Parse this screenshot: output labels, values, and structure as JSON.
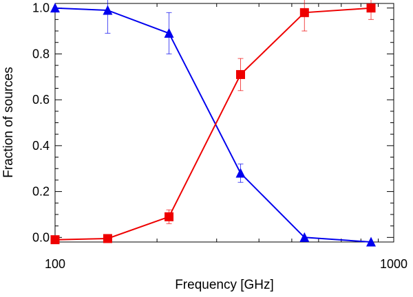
{
  "chart_data": {
    "type": "line",
    "title": "",
    "xlabel": "Frequency [GHz]",
    "ylabel": "Fraction of sources",
    "xscale": "log",
    "xlim": [
      100,
      1000
    ],
    "ylim": [
      -0.02,
      1.02
    ],
    "x_ticks": [
      {
        "value": 100,
        "label": "100"
      },
      {
        "value": 1000,
        "label": "1000"
      }
    ],
    "y_ticks": [
      {
        "value": 0.0,
        "label": "0.0"
      },
      {
        "value": 0.2,
        "label": "0.2"
      },
      {
        "value": 0.4,
        "label": "0.4"
      },
      {
        "value": 0.6,
        "label": "0.6"
      },
      {
        "value": 0.8,
        "label": "0.8"
      },
      {
        "value": 1.0,
        "label": "1.0"
      }
    ],
    "grid": false,
    "legend": "none",
    "series": [
      {
        "color": "#0000ee",
        "marker": "triangle",
        "points": [
          {
            "x": 100,
            "y": 1.0,
            "err": 0.0
          },
          {
            "x": 143,
            "y": 0.99,
            "err": 0.1
          },
          {
            "x": 217,
            "y": 0.89,
            "err": 0.09
          },
          {
            "x": 353,
            "y": 0.28,
            "err": 0.04
          },
          {
            "x": 545,
            "y": 0.0,
            "err": 0.0
          },
          {
            "x": 857,
            "y": -0.02,
            "err": 0.0
          }
        ]
      },
      {
        "color": "#ee0000",
        "marker": "square",
        "points": [
          {
            "x": 100,
            "y": -0.01,
            "err": 0.0
          },
          {
            "x": 143,
            "y": -0.005,
            "err": 0.0
          },
          {
            "x": 217,
            "y": 0.09,
            "err": 0.03
          },
          {
            "x": 353,
            "y": 0.71,
            "err": 0.07
          },
          {
            "x": 545,
            "y": 0.98,
            "err": 0.08
          },
          {
            "x": 857,
            "y": 1.0,
            "err": 0.05
          }
        ]
      }
    ]
  }
}
